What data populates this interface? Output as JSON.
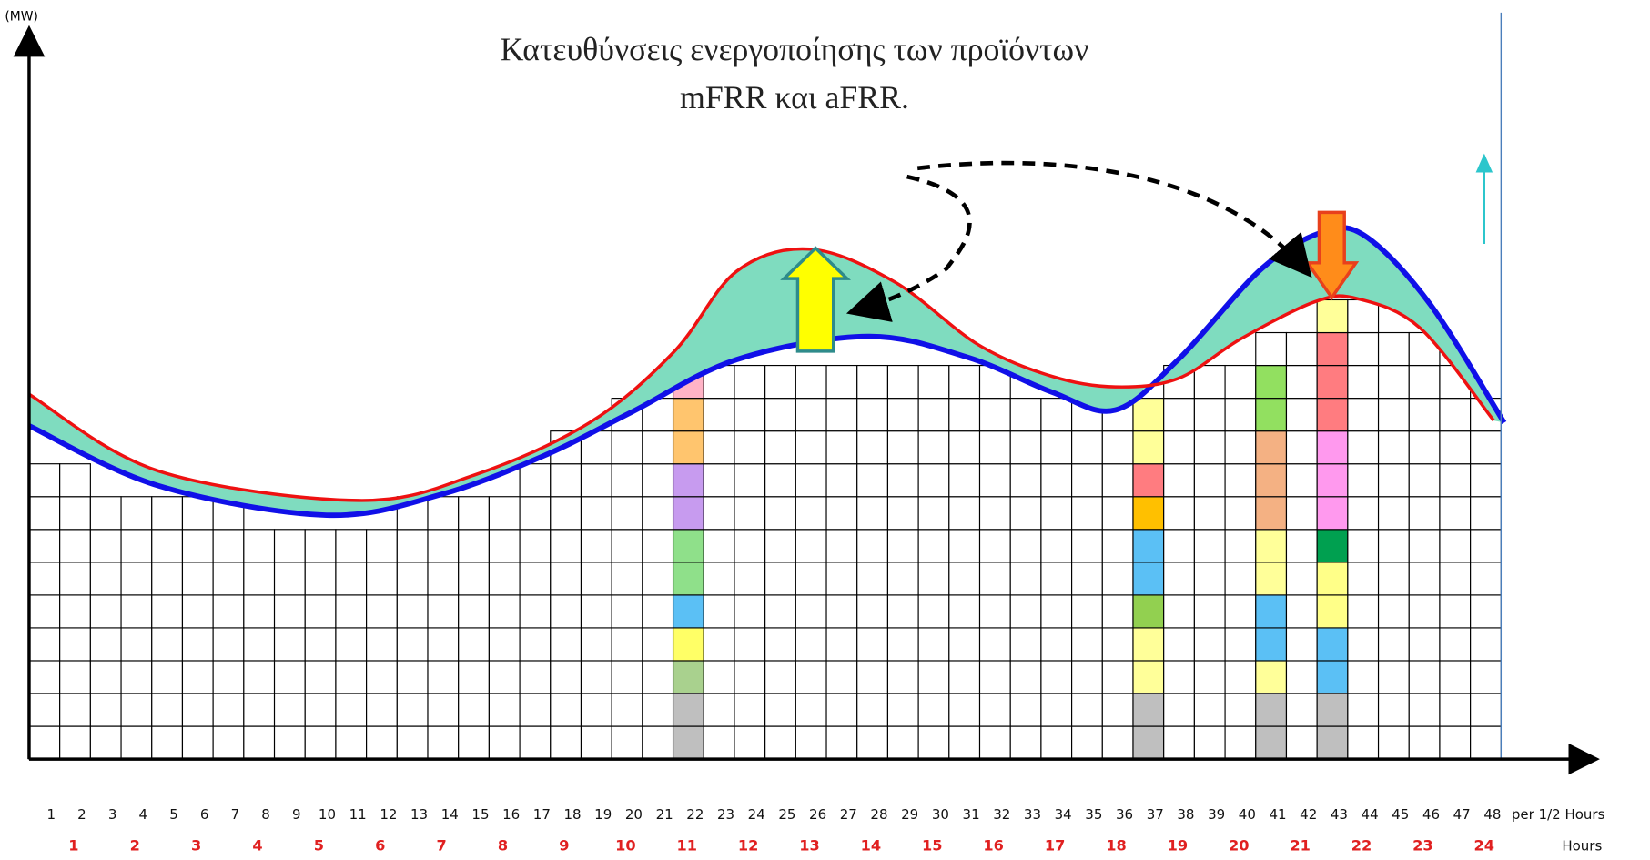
{
  "title": [
    "Κατευθύνσεις ενεργοποίησης των προϊόντων",
    "mFRR και aFRR."
  ],
  "y_axis_label": "(MW)",
  "half_hours": {
    "labels": [
      1,
      2,
      3,
      4,
      5,
      6,
      7,
      8,
      9,
      10,
      11,
      12,
      13,
      14,
      15,
      16,
      17,
      18,
      19,
      20,
      21,
      22,
      23,
      24,
      25,
      26,
      27,
      28,
      29,
      30,
      31,
      32,
      33,
      34,
      35,
      36,
      37,
      38,
      39,
      40,
      41,
      42,
      43,
      44,
      45,
      46,
      47,
      48
    ],
    "unit": "per 1/2 Hours"
  },
  "hours": {
    "labels": [
      1,
      2,
      3,
      4,
      5,
      6,
      7,
      8,
      9,
      10,
      11,
      12,
      13,
      14,
      15,
      16,
      17,
      18,
      19,
      20,
      21,
      22,
      23,
      24
    ],
    "unit": "Hours"
  }
}
